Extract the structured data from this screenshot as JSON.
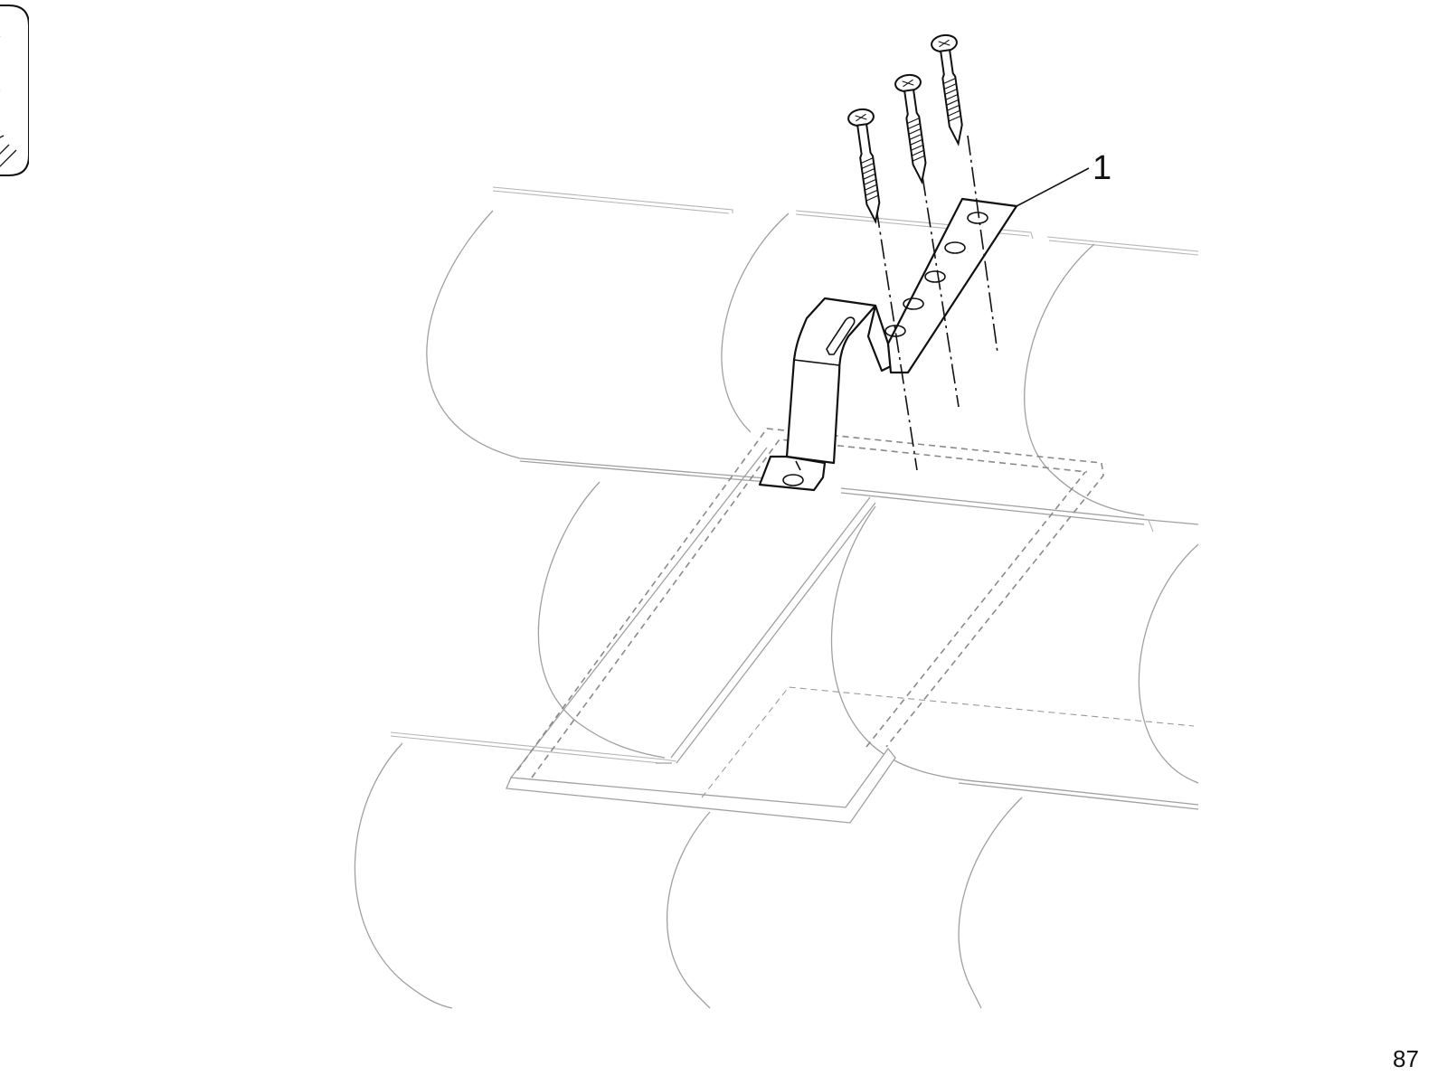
{
  "diagram": {
    "part_label": "1",
    "page_number": "87"
  },
  "colors": {
    "ink": "#111111",
    "tile_line": "#a0a0a0",
    "dashed_outline": "#8a8a8a"
  },
  "icons": {
    "tab": "binder-tab-icon",
    "screw": "wood-screw-icon"
  }
}
